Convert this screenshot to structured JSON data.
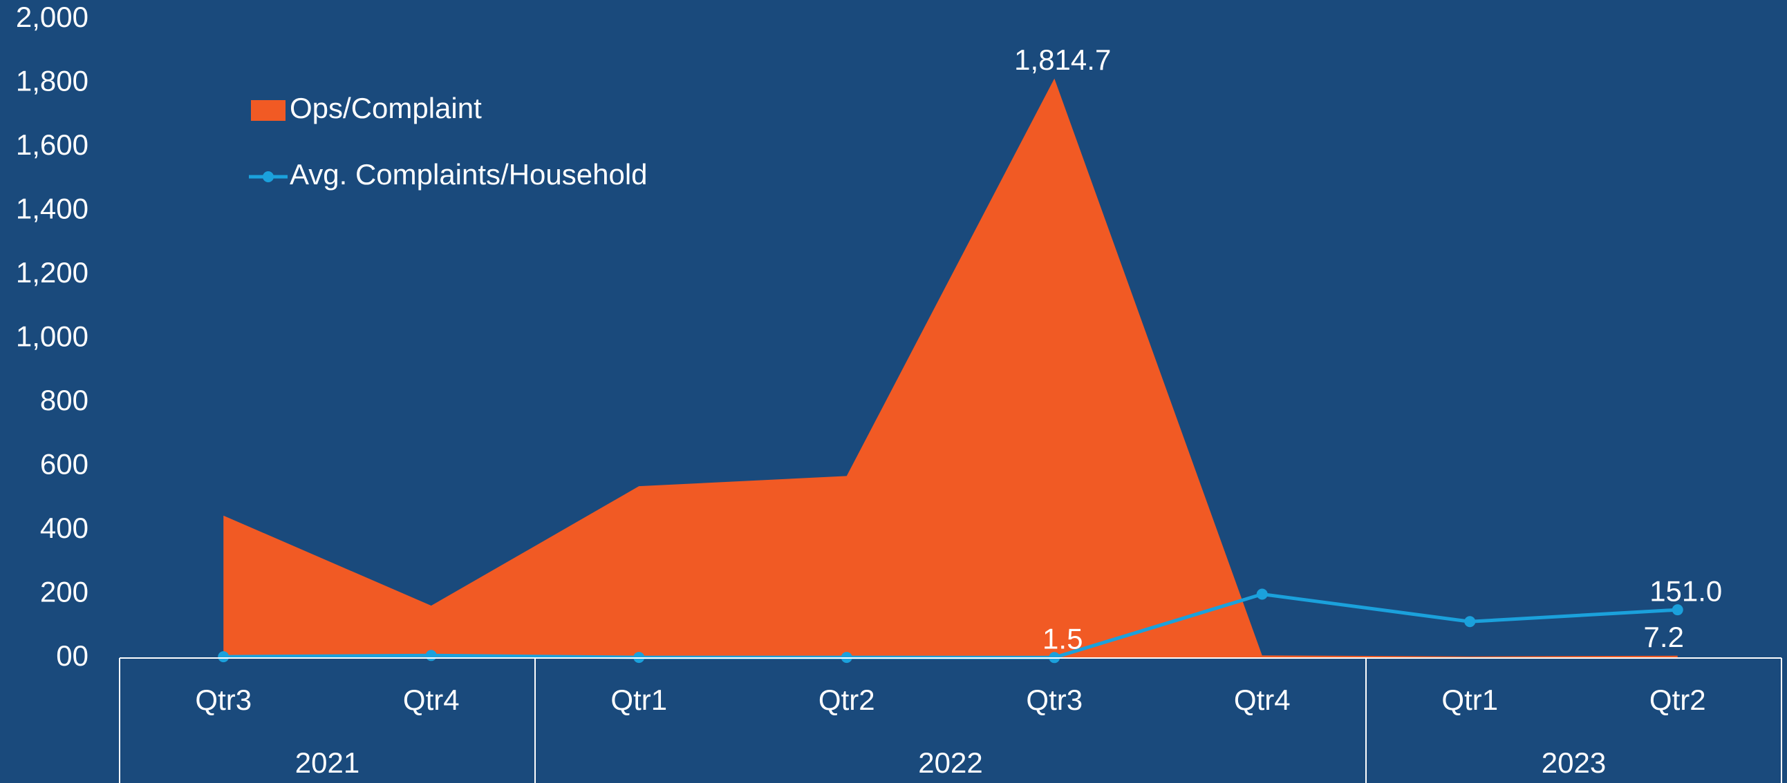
{
  "chart_data": {
    "type": "area-line",
    "categories": [
      "Qtr3",
      "Qtr4",
      "Qtr1",
      "Qtr2",
      "Qtr3",
      "Qtr4",
      "Qtr1",
      "Qtr2"
    ],
    "groups": [
      {
        "label": "2021",
        "span": 2
      },
      {
        "label": "2022",
        "span": 4
      },
      {
        "label": "2023",
        "span": 2
      }
    ],
    "series": [
      {
        "name": "Ops/Complaint",
        "type": "area",
        "color": "#f15a24",
        "values": [
          446,
          164,
          538,
          570,
          1814.7,
          8,
          5,
          7.2
        ],
        "value_labels": [
          null,
          null,
          null,
          null,
          "1,814.7",
          null,
          null,
          "7.2"
        ]
      },
      {
        "name": "Avg. Complaints/Household",
        "type": "line",
        "color": "#1ba1dc",
        "values": [
          4,
          8,
          2,
          2,
          1.5,
          200,
          114,
          151.0
        ],
        "value_labels": [
          null,
          null,
          null,
          null,
          "1.5",
          null,
          null,
          "151.0"
        ]
      }
    ],
    "ylim": [
      0,
      2000
    ],
    "yticks": [
      {
        "value": 0,
        "label": "00"
      },
      200,
      400,
      600,
      800,
      {
        "value": 1000,
        "label": "1,000"
      },
      {
        "value": 1200,
        "label": "1,200"
      },
      {
        "value": 1400,
        "label": "1,400"
      },
      {
        "value": 1600,
        "label": "1,600"
      },
      {
        "value": 1800,
        "label": "1,800"
      },
      {
        "value": 2000,
        "label": "2,000"
      }
    ],
    "legend": "top-left"
  }
}
